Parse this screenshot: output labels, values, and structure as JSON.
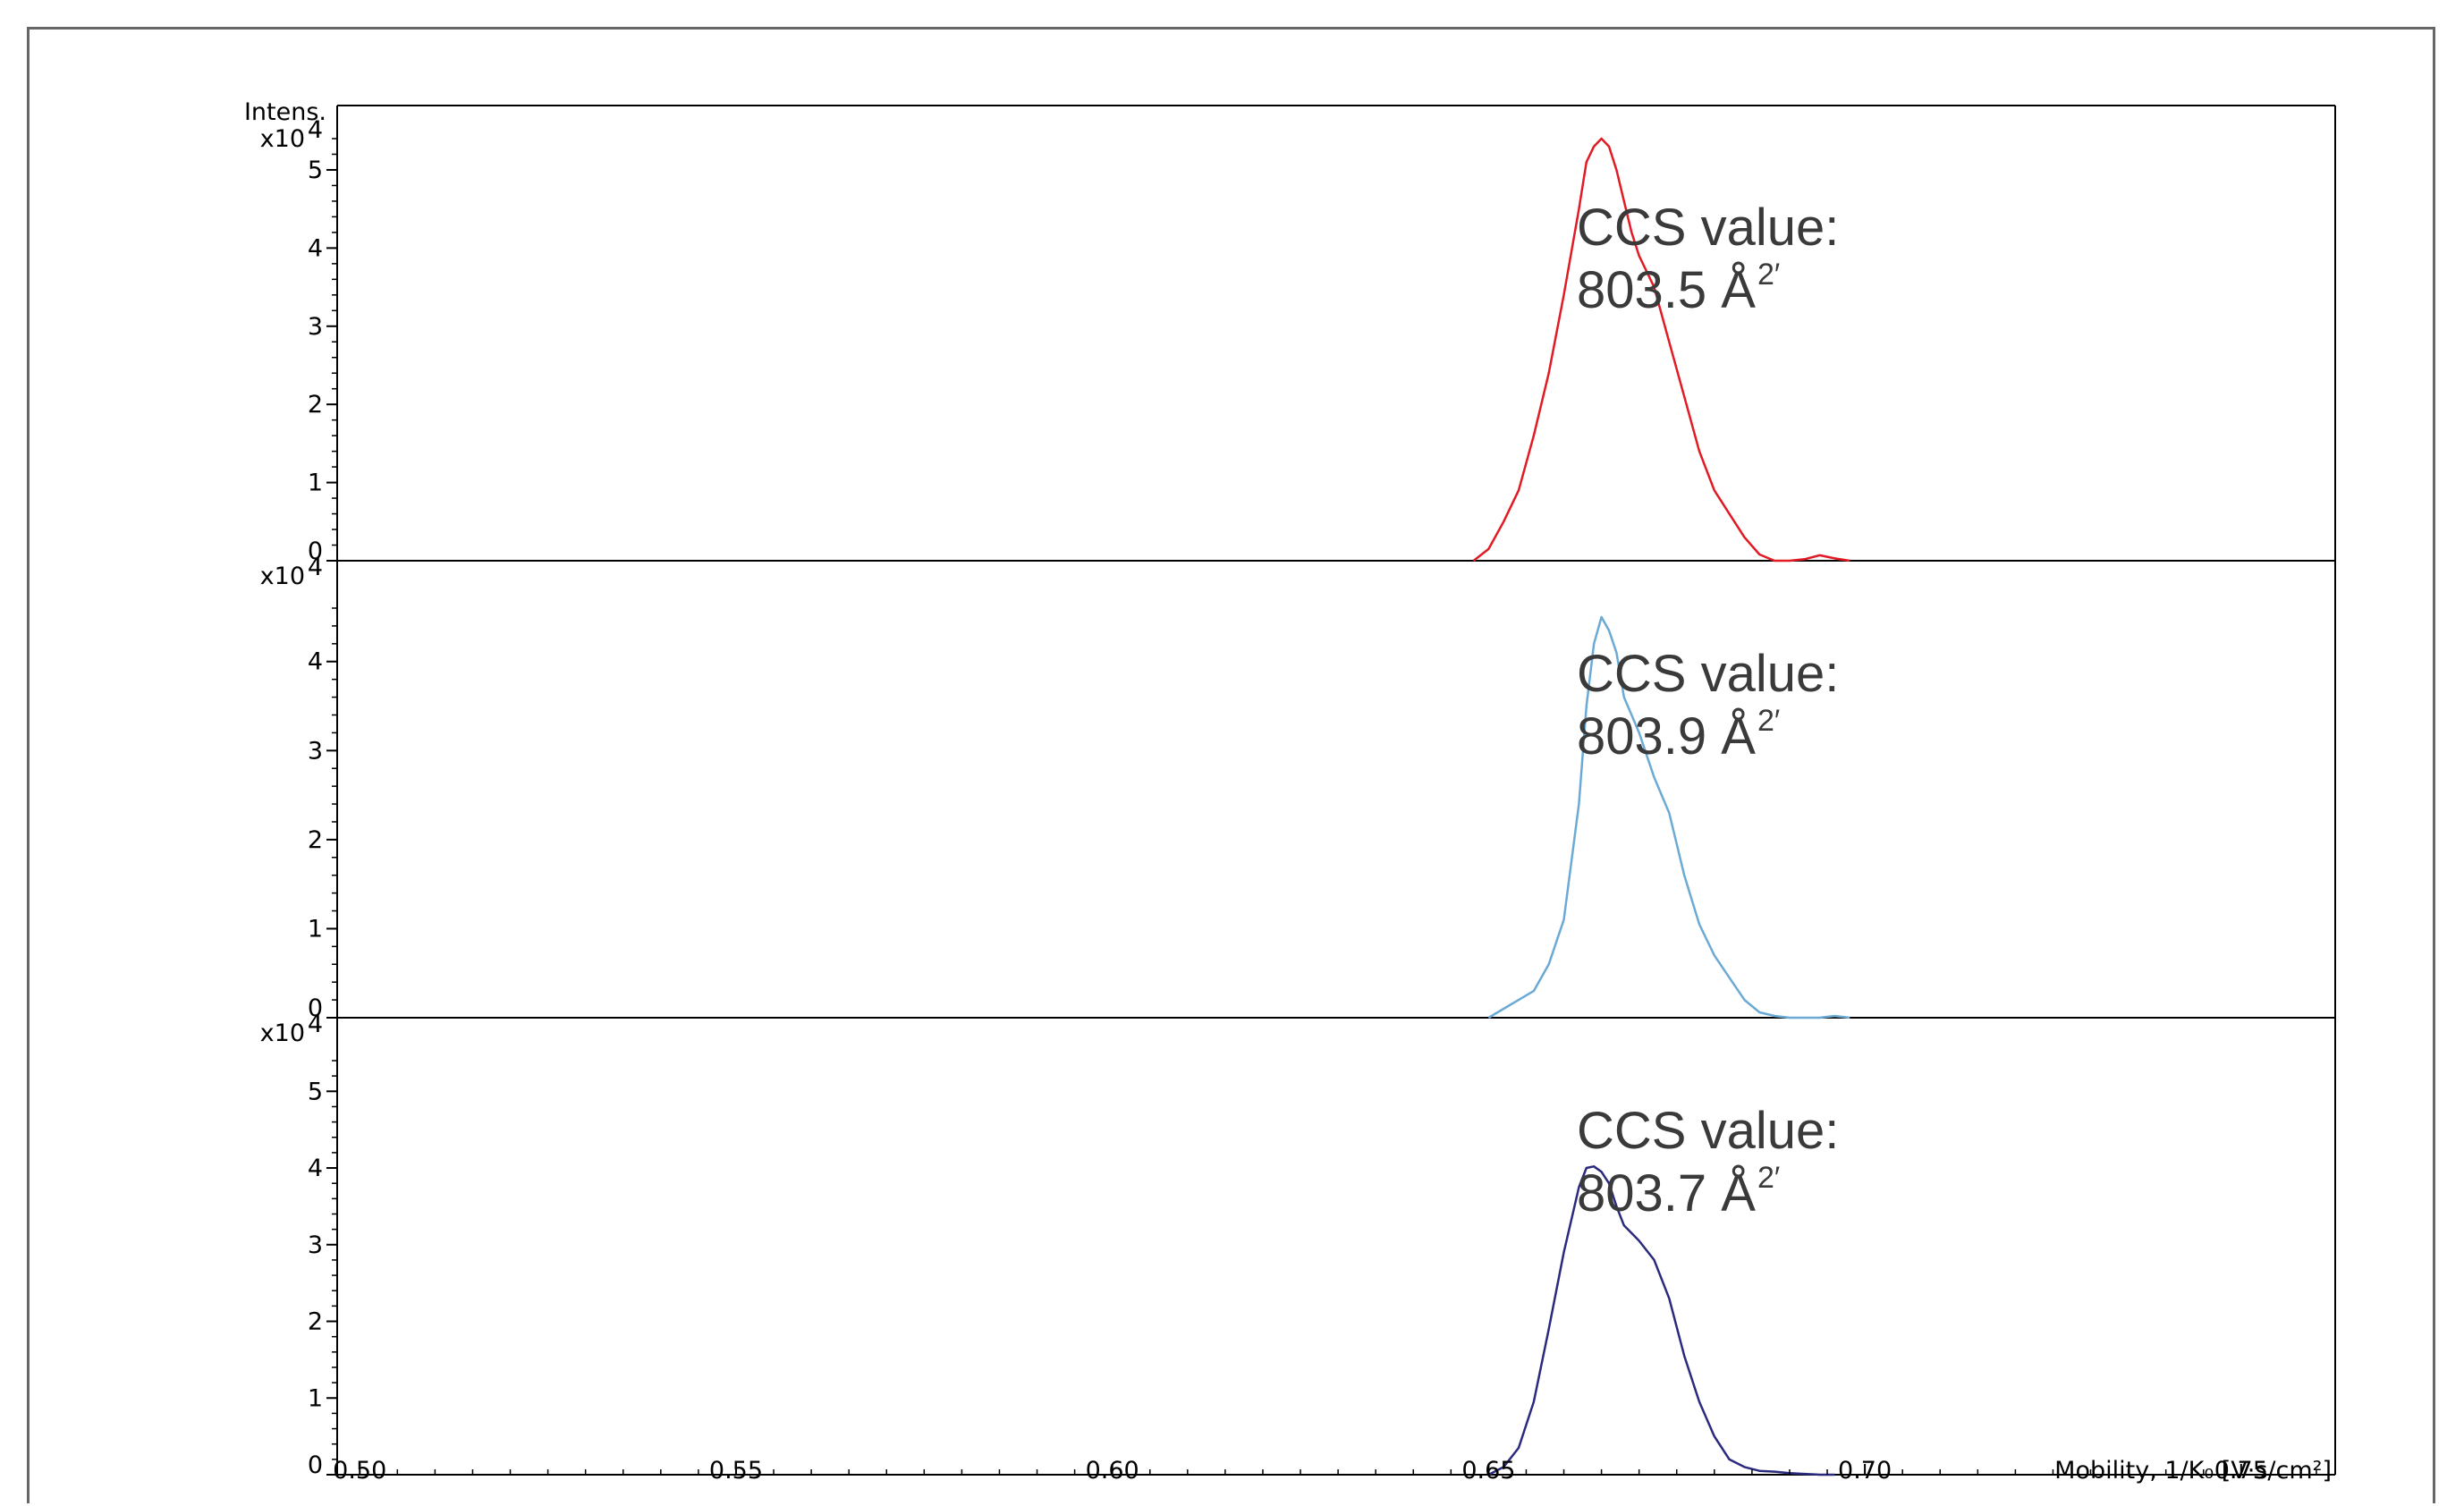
{
  "chart_data": {
    "type": "line",
    "y_title": "Intens.",
    "x_axis_label": "Mobility, 1/K₀ [V·s/cm²]",
    "xlim": [
      0.497,
      0.7625
    ],
    "x_ticks": [
      "0.50",
      "0.55",
      "0.60",
      "0.65",
      "0.70",
      "0.75"
    ],
    "panels": [
      {
        "scale_label": "x10",
        "scale_exp": "4",
        "ylim": [
          0,
          5.4
        ],
        "y_ticks": [
          0,
          1,
          2,
          3,
          4,
          5
        ],
        "color": "#e21a23",
        "annotation": [
          "CCS value:",
          "803.5 Å"
        ],
        "annotation_sup": "2′",
        "series": {
          "x": [
            0.648,
            0.65,
            0.652,
            0.654,
            0.656,
            0.658,
            0.66,
            0.662,
            0.663,
            0.664,
            0.665,
            0.666,
            0.667,
            0.668,
            0.669,
            0.67,
            0.672,
            0.674,
            0.676,
            0.678,
            0.68,
            0.682,
            0.684,
            0.686,
            0.688,
            0.69,
            0.692,
            0.694,
            0.696,
            0.698
          ],
          "y": [
            0.0,
            0.15,
            0.5,
            0.9,
            1.6,
            2.4,
            3.4,
            4.5,
            5.1,
            5.3,
            5.4,
            5.3,
            5.0,
            4.6,
            4.2,
            3.9,
            3.5,
            2.8,
            2.1,
            1.4,
            0.9,
            0.6,
            0.3,
            0.08,
            0.0,
            0.0,
            0.02,
            0.07,
            0.03,
            0.0
          ]
        }
      },
      {
        "scale_label": "x10",
        "scale_exp": "4",
        "ylim": [
          0,
          4.6
        ],
        "y_ticks": [
          0,
          1,
          2,
          3,
          4
        ],
        "color": "#6aaad4",
        "annotation": [
          "CCS value:",
          "803.9 Å"
        ],
        "annotation_sup": "2′",
        "series": {
          "x": [
            0.65,
            0.652,
            0.654,
            0.656,
            0.658,
            0.66,
            0.662,
            0.663,
            0.664,
            0.665,
            0.666,
            0.667,
            0.668,
            0.669,
            0.67,
            0.672,
            0.674,
            0.676,
            0.678,
            0.68,
            0.682,
            0.684,
            0.686,
            0.688,
            0.69,
            0.692,
            0.694,
            0.696,
            0.698
          ],
          "y": [
            0.0,
            0.1,
            0.2,
            0.3,
            0.6,
            1.1,
            2.4,
            3.5,
            4.2,
            4.5,
            4.35,
            4.1,
            3.6,
            3.4,
            3.2,
            2.7,
            2.3,
            1.6,
            1.05,
            0.7,
            0.45,
            0.2,
            0.06,
            0.02,
            0.0,
            0.0,
            0.0,
            0.02,
            0.0
          ]
        }
      },
      {
        "scale_label": "x10",
        "scale_exp": "4",
        "ylim": [
          0,
          5.4
        ],
        "y_ticks": [
          0,
          1,
          2,
          3,
          4,
          5
        ],
        "color": "#2a2a7e",
        "annotation": [
          "CCS value:",
          "803.7 Å"
        ],
        "annotation_sup": "2′",
        "series": {
          "x": [
            0.65,
            0.652,
            0.654,
            0.656,
            0.658,
            0.66,
            0.662,
            0.663,
            0.664,
            0.665,
            0.666,
            0.667,
            0.668,
            0.669,
            0.67,
            0.672,
            0.674,
            0.676,
            0.678,
            0.68,
            0.682,
            0.684,
            0.686,
            0.688,
            0.69,
            0.692,
            0.694,
            0.696
          ],
          "y": [
            0.0,
            0.1,
            0.35,
            0.95,
            1.9,
            2.9,
            3.75,
            4.0,
            4.02,
            3.95,
            3.8,
            3.5,
            3.25,
            3.15,
            3.05,
            2.8,
            2.3,
            1.55,
            0.95,
            0.5,
            0.2,
            0.1,
            0.05,
            0.04,
            0.02,
            0.01,
            0.0,
            0.0
          ]
        }
      }
    ]
  }
}
